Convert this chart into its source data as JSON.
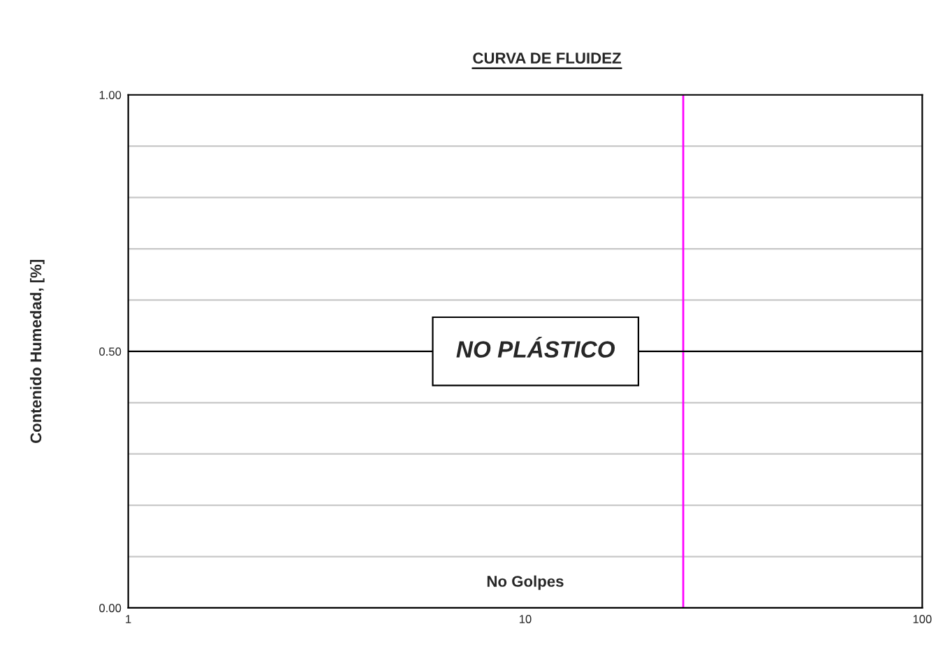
{
  "chart_data": {
    "type": "scatter",
    "title": "CURVA DE FLUIDEZ",
    "xlabel": "No Golpes",
    "ylabel": "Contenido Humedad, [%]",
    "log": "x",
    "xlim": [
      1,
      100
    ],
    "xticks": [
      1,
      10,
      100
    ],
    "ylim": [
      0,
      1
    ],
    "yticks": [
      {
        "value": 0,
        "label": "0.00"
      },
      {
        "value": 0.1,
        "label": null
      },
      {
        "value": 0.2,
        "label": null
      },
      {
        "value": 0.3,
        "label": null
      },
      {
        "value": 0.4,
        "label": null
      },
      {
        "value": 0.5,
        "label": "0.50"
      },
      {
        "value": 0.6,
        "label": null
      },
      {
        "value": 0.7,
        "label": null
      },
      {
        "value": 0.8,
        "label": null
      },
      {
        "value": 0.9,
        "label": null
      },
      {
        "value": 1,
        "label": "1.00"
      }
    ],
    "grid": "y",
    "ref_lines": [
      {
        "axis": "x",
        "value": 25,
        "color": "#ff00ff"
      },
      {
        "axis": "y",
        "value": 0.5,
        "color": "#000000"
      }
    ],
    "annotations": [
      "NO PLÁSTICO"
    ],
    "legend": false
  }
}
